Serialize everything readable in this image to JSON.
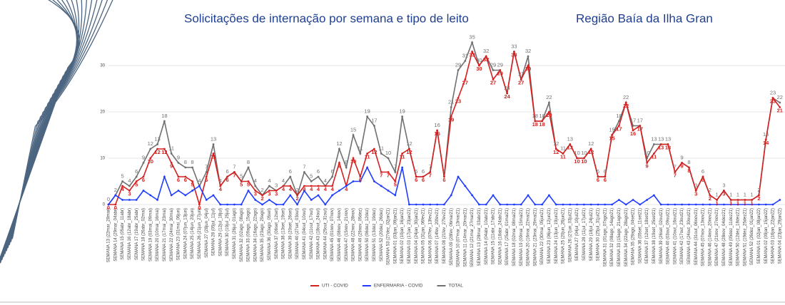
{
  "chart_data": {
    "type": "line",
    "title": "Solicitações de internação por semana e tipo de leito",
    "subtitle": "Região Baía da Ilha Gran",
    "categories": [
      "SEMANA 13 (22mar_28mar)",
      "SEMANA 14 (29mar_04abr)",
      "SEMANA 15 (05abr_11abr)",
      "SEMANA 16 (12abr_18abr)",
      "SEMANA 17 (19abr_25abr)",
      "SEMANA 18 (26abr_02mai)",
      "SEMANA 19 (03mai_09mai)",
      "SEMANA 20 (10mai_16mai)",
      "SEMANA 21 (17mai_23mai)",
      "SEMANA 22 (24mai_30mai)",
      "SEMANA 23 (31mai_06jun)",
      "SEMANA 24 (07jun_13jun)",
      "SEMANA 25 (14jun_20jun)",
      "SEMANA 26 (21jun_27jun)",
      "SEMANA 27 (28jun_04jul)",
      "SEMANA 28 (05jul_11jul)",
      "SEMANA 29 (12jul_18jul)",
      "SEMANA 30 (19jul_25jul)",
      "SEMANA 31 (26jul_01ago)",
      "SEMANA 32 (02ago_08ago)",
      "SEMANA 33 (09ago_15ago)",
      "SEMANA 34 (16ago_22ago)",
      "SEMANA 35 (23ago_29ago)",
      "SEMANA 36 (30ago_05set)",
      "SEMANA 37 (06set_12set)",
      "SEMANA 38 (13set_19set)",
      "SEMANA 39 (20set_26set)",
      "SEMANA 40 (27set_03out)",
      "SEMANA 41 (04out_10out)",
      "SEMANA 42 (11out_17out)",
      "SEMANA 43 (18out_24out)",
      "SEMANA 44 (25out_31out)",
      "SEMANA 45 (01nov_07nov)",
      "SEMANA 46 (08nov_14nov)",
      "SEMANA 47 (15nov_21nov)",
      "SEMANA 48 (22nov_28nov)",
      "SEMANA 49 (29nov_05dez)",
      "SEMANA 50 (06dez_12dez)",
      "SEMANA 51 (13dez_19dez)",
      "SEMANA 52 (20dez_26dez)",
      "SEMANA 53 (27dez_02jan21)",
      "SEMANA 01 (03jan_09jan21)",
      "SEMANA 02 (10jan_16jan21)",
      "SEMANA 03 (17jan_23jan21)",
      "SEMANA 04 (24jan_30jan21)",
      "SEMANA 05 (31jan_06fev21)",
      "SEMANA 06 (07fev_13fev21)",
      "SEMANA 07 (14fev_20fev21)",
      "SEMANA 08 (21fev_27fev21)",
      "SEMANA 09 (28fev_06mar21)",
      "SEMANA 10 (07mar_13mar21)",
      "SEMANA 11 (14mar_20mar21)",
      "SEMANA 12 (21mar_27mar21)",
      "SEMANA 13 (28mar_03abr21)",
      "SEMANA 14 (04abr_10abr21)",
      "SEMANA 15 (11abr_17abr21)",
      "SEMANA 16 (18abr_24abr21)",
      "SEMANA 17 (25abr_01mai21)",
      "SEMANA 18 (02mai_08mai21)",
      "SEMANA 19 (09mai_15mai21)",
      "SEMANA 20 (16mai_22mai21)",
      "SEMANA 21 (23mai_29mai21)",
      "SEMANA 22 (30mai_05jun21)",
      "SEMANA 23 (06jun_12jun21)",
      "SEMANA 24 (13jun_19jun21)",
      "SEMANA 25 (20jun_26jun21)",
      "SEMANA 26 (27jun_03jul21)",
      "SEMANA 27 (04jul_10jul21)",
      "SEMANA 28 (11jul_17jul21)",
      "SEMANA 29 (18jul_24jul21)",
      "SEMANA 30 (25jul_31jul21)",
      "SEMANA 31 (01ago_07ago21)",
      "SEMANA 32 (08ago_14ago21)",
      "SEMANA 33 (15ago_21ago21)",
      "SEMANA 34 (22ago_28ago21)",
      "SEMANA 35 (29ago_04set21)",
      "SEMANA 36 (05set_11set21)",
      "SEMANA 37 (12set_18set21)",
      "SEMANA 38 (19set_25set21)",
      "SEMANA 39 (26set_02out21)",
      "SEMANA 40 (03out_09out21)",
      "SEMANA 41 (10out_16out21)",
      "SEMANA 42 (17out_23out21)",
      "SEMANA 43 (24out_30out21)",
      "SEMANA 44 (31out_06nov21)",
      "SEMANA 45 (07nov_13nov21)",
      "SEMANA 46 (14nov_20nov21)",
      "SEMANA 47 (21nov_27nov21)",
      "SEMANA 48 (28nov_04dez21)",
      "SEMANA 49 (05dez_11dez21)",
      "SEMANA 50 (12dez_18dez21)",
      "SEMANA 51 (19dez_25dez21)",
      "SEMANA 52 (26dez_01jan22)",
      "SEMANA 01 (02jan_08jan22)",
      "SEMANA 02 (09jan_15jan22)",
      "SEMANA 03 (16jan_22jan22)",
      "SEMANA 04 (23jan_29jan22)"
    ],
    "series": [
      {
        "name": "UTI - COVID",
        "color": "#d62020",
        "labels": true,
        "values": [
          0,
          0,
          4,
          3,
          5,
          6,
          10,
          12,
          12,
          9,
          6,
          6,
          5,
          0,
          6,
          11,
          4,
          6,
          7,
          5,
          5,
          3,
          2,
          3,
          3,
          4,
          4,
          2,
          4,
          4,
          4,
          4,
          4,
          9,
          4,
          10,
          6,
          11,
          12,
          7,
          7,
          5,
          11,
          12,
          6,
          6,
          7,
          16,
          6,
          19,
          23,
          27,
          33,
          30,
          32,
          27,
          29,
          24,
          33,
          27,
          30,
          18,
          18,
          20,
          12,
          11,
          13,
          10,
          10,
          12,
          6,
          6,
          15,
          17,
          22,
          16,
          17,
          9,
          11,
          13,
          13,
          7,
          9,
          8,
          3,
          6,
          2,
          1,
          3,
          1,
          1,
          1,
          1,
          2,
          14,
          23,
          21
        ]
      },
      {
        "name": "ENFERMARIA - COVID",
        "color": "#1f3cff",
        "labels": false,
        "values": [
          0,
          2,
          1,
          1,
          1,
          3,
          2,
          1,
          6,
          2,
          3,
          2,
          3,
          4,
          1,
          2,
          0,
          0,
          0,
          0,
          3,
          1,
          0,
          1,
          0,
          0,
          2,
          0,
          3,
          1,
          2,
          0,
          2,
          3,
          4,
          5,
          5,
          8,
          5,
          4,
          3,
          2,
          8,
          0,
          0,
          0,
          0,
          0,
          0,
          2,
          6,
          4,
          2,
          0,
          0,
          2,
          0,
          0,
          0,
          0,
          2,
          0,
          0,
          2,
          0,
          0,
          0,
          0,
          0,
          0,
          0,
          0,
          0,
          1,
          0,
          1,
          0,
          1,
          2,
          0,
          0,
          0,
          0,
          0,
          0,
          0,
          0,
          0,
          0,
          0,
          0,
          0,
          0,
          0,
          0,
          0,
          1
        ]
      },
      {
        "name": "TOTAL",
        "color": "#707070",
        "labels": true,
        "values": [
          0,
          2,
          5,
          4,
          6,
          9,
          12,
          13,
          18,
          11,
          9,
          8,
          8,
          4,
          7,
          13,
          4,
          6,
          7,
          5,
          8,
          4,
          2,
          4,
          3,
          4,
          6,
          2,
          7,
          5,
          6,
          4,
          6,
          12,
          8,
          15,
          11,
          19,
          17,
          11,
          10,
          7,
          19,
          12,
          6,
          6,
          7,
          16,
          6,
          21,
          29,
          31,
          35,
          30,
          32,
          29,
          29,
          24,
          33,
          27,
          32,
          18,
          18,
          22,
          12,
          11,
          13,
          10,
          10,
          12,
          6,
          6,
          15,
          18,
          22,
          17,
          17,
          10,
          13,
          13,
          13,
          7,
          9,
          8,
          3,
          6,
          2,
          1,
          3,
          1,
          1,
          1,
          1,
          2,
          14,
          23,
          22
        ]
      }
    ],
    "ylim": [
      0,
      35
    ],
    "yticks": [
      0,
      10,
      20,
      30
    ],
    "grid": true,
    "legend": "bottom"
  }
}
